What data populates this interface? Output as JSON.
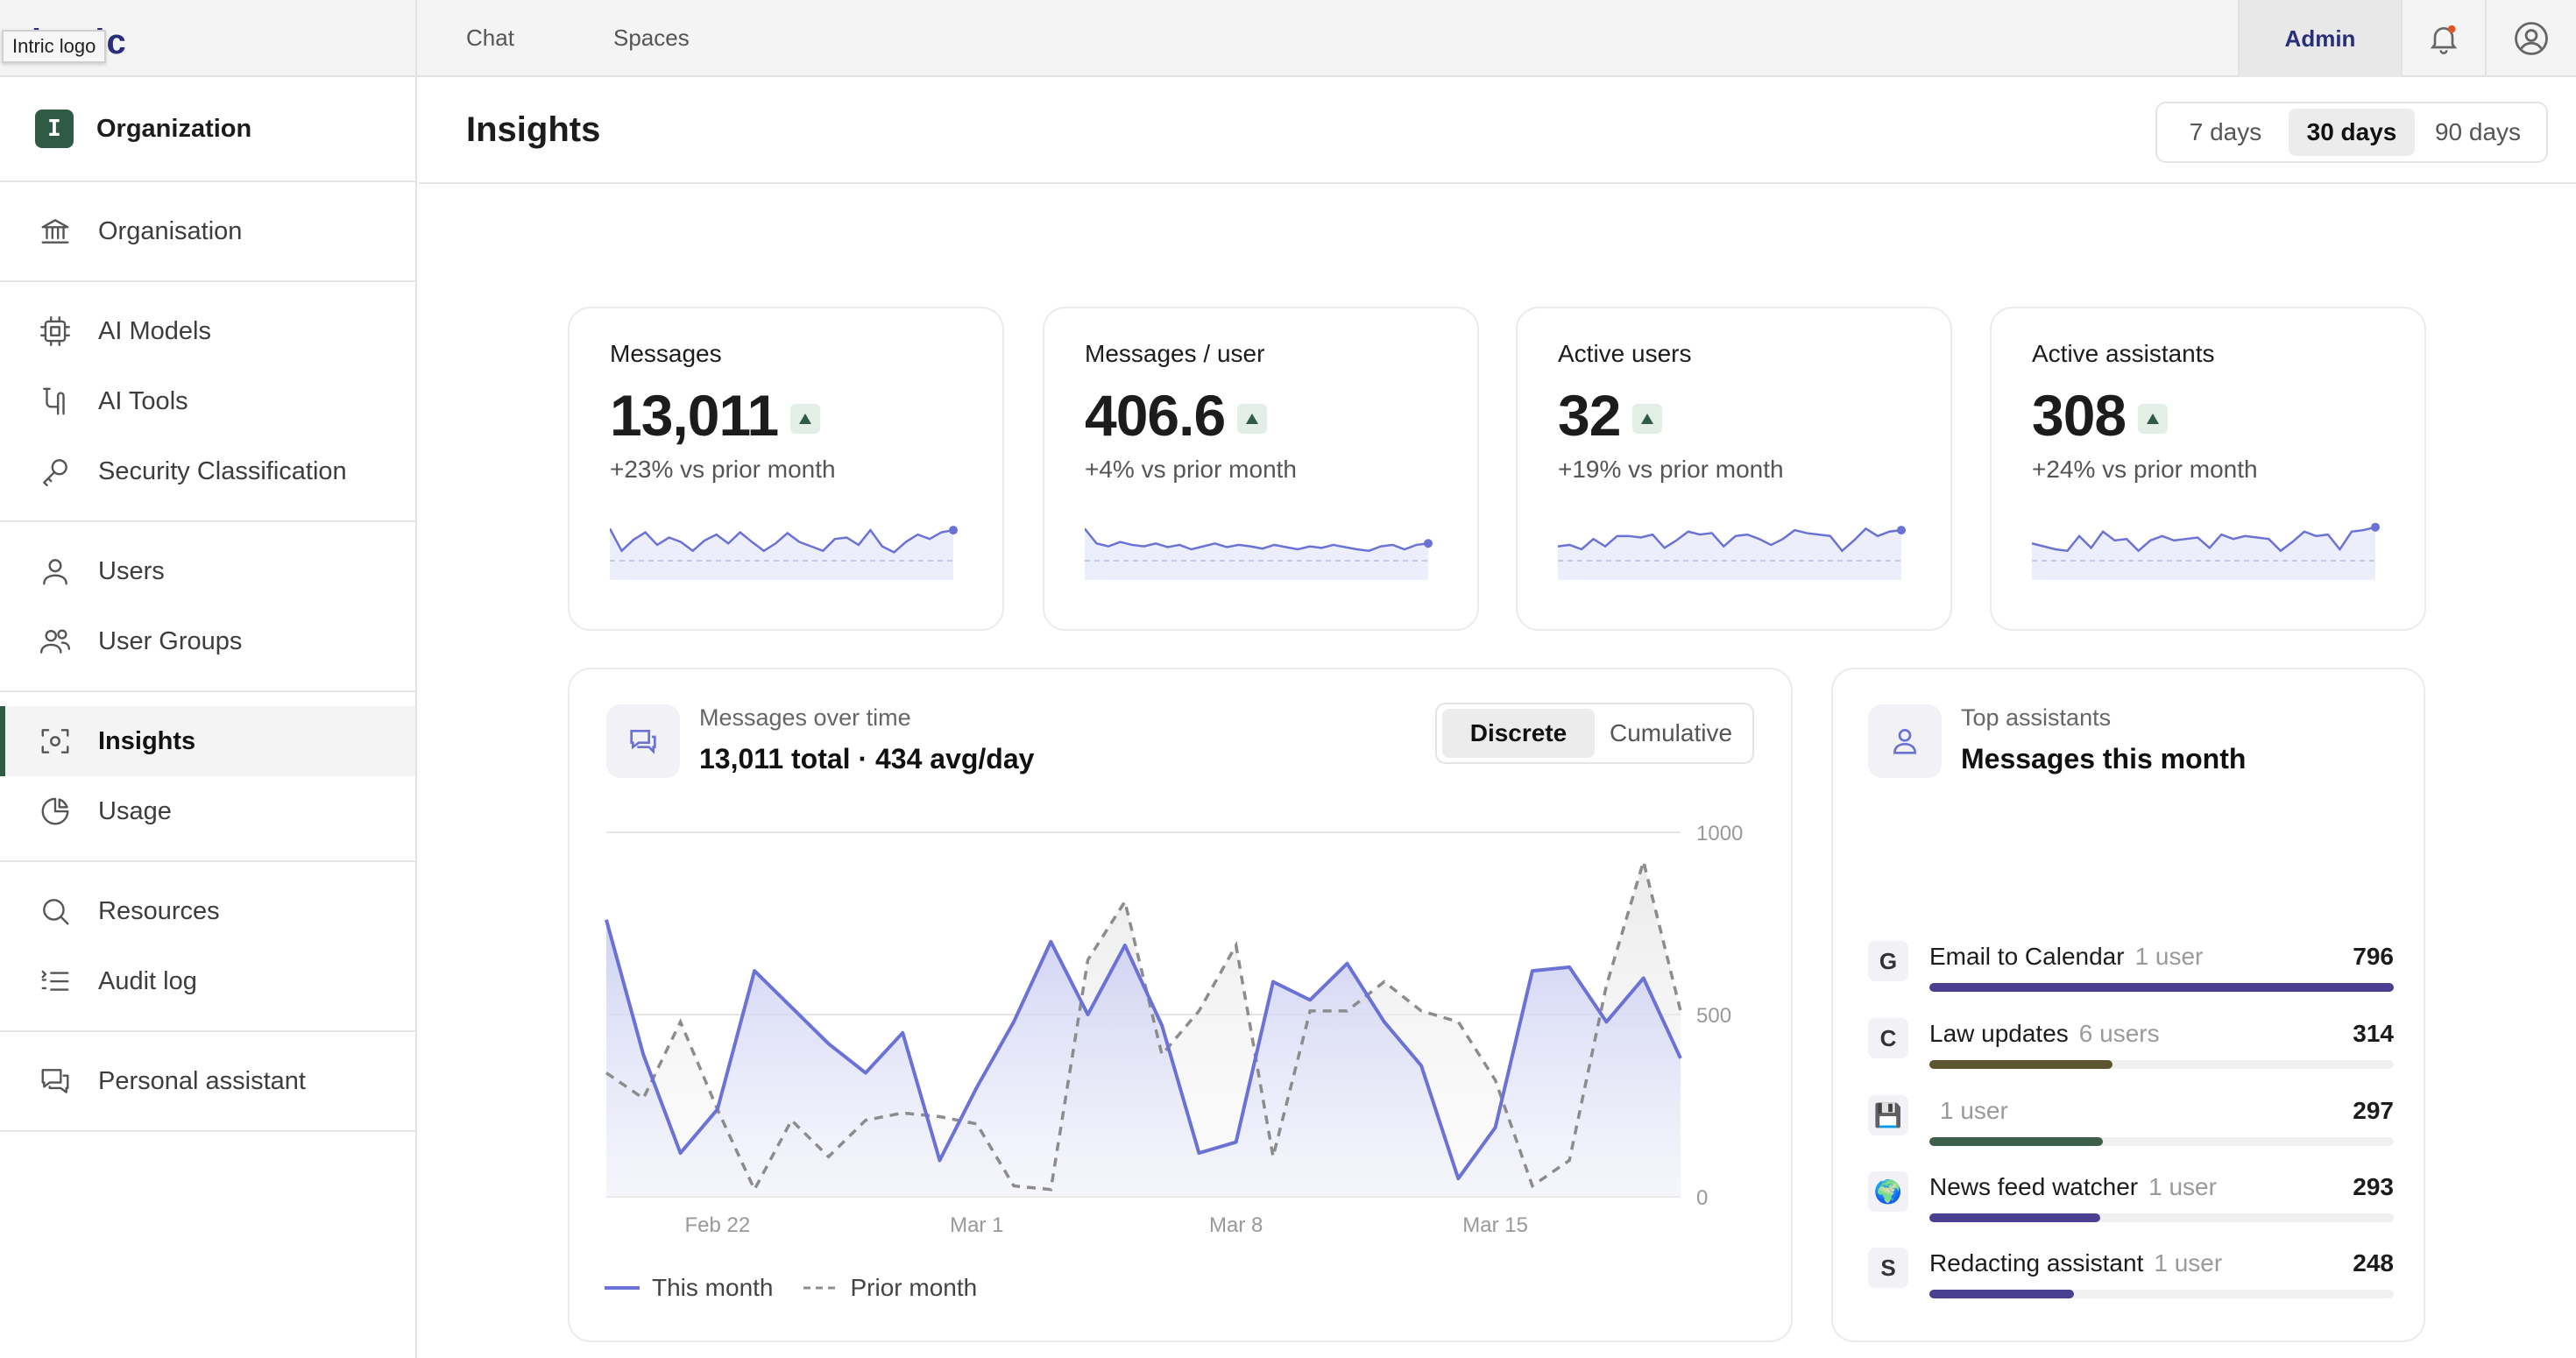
{
  "topbar": {
    "logo_tooltip": "Intric logo",
    "logo_text": "intric",
    "nav": [
      "Chat",
      "Spaces"
    ],
    "admin_label": "Admin"
  },
  "sidebar": {
    "org_badge": "I",
    "org_title": "Organization",
    "groups": [
      [
        {
          "label": "Organisation",
          "icon": "bank-icon"
        }
      ],
      [
        {
          "label": "AI Models",
          "icon": "chip-icon"
        },
        {
          "label": "AI Tools",
          "icon": "tools-icon"
        },
        {
          "label": "Security Classification",
          "icon": "key-icon"
        }
      ],
      [
        {
          "label": "Users",
          "icon": "user-icon"
        },
        {
          "label": "User Groups",
          "icon": "users-icon"
        }
      ],
      [
        {
          "label": "Insights",
          "icon": "insights-icon",
          "active": true
        },
        {
          "label": "Usage",
          "icon": "pie-icon"
        }
      ],
      [
        {
          "label": "Resources",
          "icon": "search-icon"
        },
        {
          "label": "Audit log",
          "icon": "list-icon"
        }
      ],
      [
        {
          "label": "Personal assistant",
          "icon": "chat-icon"
        }
      ]
    ]
  },
  "header": {
    "title": "Insights",
    "ranges": [
      "7 days",
      "30 days",
      "90 days"
    ],
    "selected_range": "30 days"
  },
  "stats": [
    {
      "label": "Messages",
      "value": "13,011",
      "delta": "+23% vs prior month",
      "spark": [
        60,
        30,
        45,
        55,
        38,
        48,
        42,
        30,
        44,
        52,
        40,
        55,
        42,
        30,
        40,
        54,
        42,
        36,
        30,
        46,
        48,
        38,
        58,
        36,
        28,
        42,
        52,
        46,
        55,
        58
      ]
    },
    {
      "label": "Messages / user",
      "value": "406.6",
      "delta": "+4% vs prior month",
      "spark": [
        60,
        40,
        36,
        42,
        38,
        36,
        40,
        35,
        38,
        32,
        36,
        40,
        35,
        38,
        36,
        33,
        38,
        35,
        32,
        36,
        34,
        38,
        35,
        32,
        30,
        36,
        38,
        32,
        38,
        40
      ]
    },
    {
      "label": "Active users",
      "value": "32",
      "delta": "+19% vs prior month",
      "spark": [
        36,
        38,
        32,
        46,
        36,
        50,
        50,
        48,
        52,
        34,
        44,
        56,
        52,
        54,
        36,
        50,
        52,
        46,
        38,
        46,
        58,
        54,
        52,
        50,
        30,
        44,
        60,
        50,
        56,
        58
      ]
    },
    {
      "label": "Active assistants",
      "value": "308",
      "delta": "+24% vs prior month",
      "spark": [
        40,
        36,
        32,
        30,
        50,
        34,
        56,
        44,
        46,
        30,
        44,
        50,
        44,
        46,
        48,
        34,
        52,
        46,
        50,
        48,
        46,
        30,
        42,
        56,
        50,
        52,
        32,
        56,
        58,
        62
      ]
    }
  ],
  "messages_over_time": {
    "kicker": "Messages over time",
    "summary": "13,011 total · 434 avg/day",
    "modes": [
      "Discrete",
      "Cumulative"
    ],
    "selected_mode": "Discrete",
    "legend": [
      "This month",
      "Prior month"
    ]
  },
  "chart_data": {
    "type": "area",
    "x_tick_labels": [
      "Feb 22",
      "Mar 1",
      "Mar 8",
      "Mar 15"
    ],
    "x_tick_index": [
      3,
      10,
      17,
      24
    ],
    "y_ticks": [
      0,
      500,
      1000
    ],
    "ylim": [
      0,
      1000
    ],
    "series": [
      {
        "name": "This month",
        "style": "solid-area",
        "color": "#6b72d6",
        "values": [
          760,
          390,
          120,
          240,
          620,
          520,
          420,
          340,
          450,
          100,
          300,
          480,
          700,
          500,
          690,
          470,
          120,
          150,
          590,
          540,
          640,
          480,
          360,
          50,
          190,
          620,
          630,
          480,
          600,
          380
        ]
      },
      {
        "name": "Prior month",
        "style": "dashed",
        "color": "#8c8c8c",
        "values": [
          340,
          270,
          480,
          240,
          20,
          210,
          110,
          210,
          230,
          220,
          200,
          30,
          20,
          650,
          810,
          390,
          510,
          690,
          110,
          510,
          510,
          590,
          510,
          480,
          320,
          30,
          100,
          580,
          920,
          510
        ]
      }
    ],
    "legend_position": "bottom-left",
    "grid": true
  },
  "top_assistants": {
    "kicker": "Top assistants",
    "title": "Messages this month",
    "max": 796,
    "items": [
      {
        "avatar": "G",
        "name": "Email to Calendar",
        "users": "1 user",
        "count": "796",
        "value": 796,
        "color": "#4a3f91"
      },
      {
        "avatar": "C",
        "name": "Law updates",
        "users": "6 users",
        "count": "314",
        "value": 314,
        "color": "#5c5630"
      },
      {
        "avatar": "💾",
        "name": "",
        "users": "1 user",
        "count": "297",
        "value": 297,
        "color": "#3d5e4b"
      },
      {
        "avatar": "🌍",
        "name": "News feed watcher",
        "users": "1 user",
        "count": "293",
        "value": 293,
        "color": "#4a3f91"
      },
      {
        "avatar": "S",
        "name": "Redacting assistant",
        "users": "1 user",
        "count": "248",
        "value": 248,
        "color": "#4a3f91"
      }
    ]
  }
}
